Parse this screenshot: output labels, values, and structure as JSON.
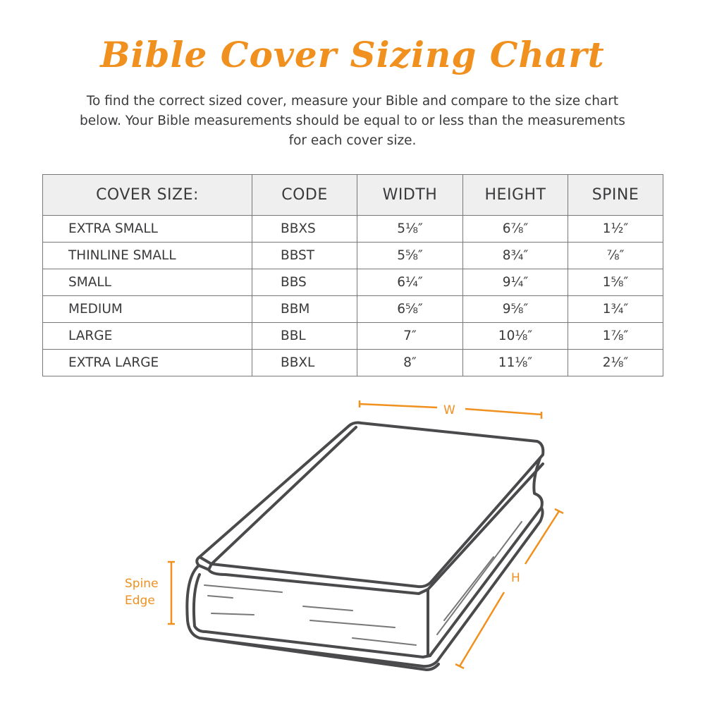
{
  "title": "Bible Cover Sizing Chart",
  "intro": "To find the correct sized cover, measure your Bible and compare to the size chart below. Your Bible measurements should be equal to or less than the measurements for each cover size.",
  "table": {
    "headers": [
      "COVER SIZE:",
      "CODE",
      "WIDTH",
      "HEIGHT",
      "SPINE"
    ],
    "rows": [
      [
        "EXTRA SMALL",
        "BBXS",
        "5⅛″",
        "6⅞″",
        "1½″"
      ],
      [
        "THINLINE SMALL",
        "BBST",
        "5⅝″",
        "8¾″",
        "⅞″"
      ],
      [
        "SMALL",
        "BBS",
        "6¼″",
        "9¼″",
        "1⅝″"
      ],
      [
        "MEDIUM",
        "BBM",
        "6⅝″",
        "9⅝″",
        "1¾″"
      ],
      [
        "LARGE",
        "BBL",
        "7″",
        "10⅛″",
        "1⅞″"
      ],
      [
        "EXTRA LARGE",
        "BBXL",
        "8″",
        "11⅛″",
        "2⅛″"
      ]
    ]
  },
  "diagram": {
    "width_label": "W",
    "height_label": "H",
    "spine_label_line1": "Spine",
    "spine_label_line2": "Edge"
  },
  "colors": {
    "accent": "#f0901e",
    "text": "#3a3a3c",
    "header_bg": "#efefef",
    "line": "#555555"
  }
}
